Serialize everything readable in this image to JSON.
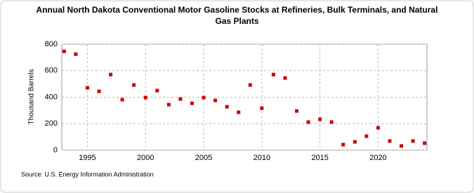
{
  "chart_data": {
    "type": "scatter",
    "title": "Annual North Dakota Conventional Motor Gasoline Stocks at Refineries, Bulk Terminals, and Natural Gas Plants",
    "y_label": "Thousand Barrels",
    "source": "Source: U.S. Energy Information Administration",
    "x": [
      1993,
      1994,
      1995,
      1996,
      1997,
      1998,
      1999,
      2000,
      2001,
      2002,
      2003,
      2004,
      2005,
      2006,
      2007,
      2008,
      2009,
      2010,
      2011,
      2012,
      2013,
      2014,
      2015,
      2016,
      2017,
      2018,
      2019,
      2020,
      2021,
      2022,
      2023,
      2024
    ],
    "series": [
      {
        "name": "North Dakota",
        "color": "#cc0000",
        "values": [
          746,
          725,
          471,
          444,
          571,
          381,
          492,
          397,
          450,
          344,
          386,
          354,
          397,
          376,
          328,
          286,
          492,
          317,
          571,
          545,
          296,
          212,
          233,
          212,
          42,
          63,
          106,
          169,
          69,
          32,
          69,
          53
        ]
      }
    ],
    "xlim": [
      1992.8,
      2024.2
    ],
    "xticks": [
      1995,
      2000,
      2005,
      2010,
      2015,
      2020
    ],
    "ylim": [
      0,
      800
    ],
    "yticks": [
      0,
      200,
      400,
      600,
      800
    ],
    "grid": true
  }
}
